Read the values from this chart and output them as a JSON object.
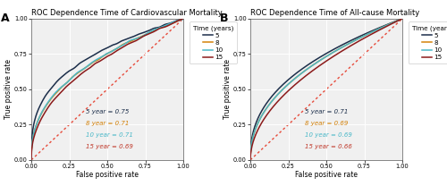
{
  "panel_A": {
    "title": "ROC Dependence Time of Cardiovascular Mortality",
    "auc": {
      "5": 0.75,
      "8": 0.71,
      "10": 0.71,
      "15": 0.69
    },
    "colors": {
      "5": "#1c2e4a",
      "8": "#d4820a",
      "10": "#4ab8c8",
      "15": "#8b1a1a"
    },
    "annotation_colors": {
      "5": "#1c2e4a",
      "8": "#d4820a",
      "10": "#4ab8c8",
      "15": "#c0392b"
    }
  },
  "panel_B": {
    "title": "ROC Dependence Time of All-cause Mortality",
    "auc": {
      "5": 0.71,
      "8": 0.69,
      "10": 0.69,
      "15": 0.66
    },
    "colors": {
      "5": "#1c2e4a",
      "8": "#d4820a",
      "10": "#4ab8c8",
      "15": "#8b1a1a"
    },
    "annotation_colors": {
      "5": "#1c2e4a",
      "8": "#d4820a",
      "10": "#4ab8c8",
      "15": "#c0392b"
    }
  },
  "legend_title": "Time (years)",
  "years": [
    "5",
    "8",
    "10",
    "15"
  ],
  "xlabel": "False positive rate",
  "ylabel": "True positive rate",
  "background_color": "#ffffff",
  "panel_bg": "#f0f0f0",
  "grid_color": "#ffffff",
  "diag_color": "#e74c3c",
  "label_fontsize": 5.5,
  "title_fontsize": 6.0,
  "legend_fontsize": 5.2,
  "tick_fontsize": 4.8,
  "ann_fontsize": 5.0
}
